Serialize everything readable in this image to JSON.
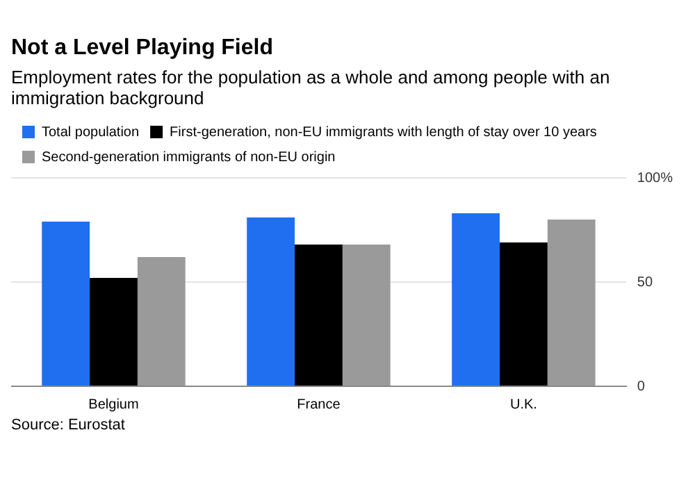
{
  "chart_data": {
    "type": "bar",
    "title": "Not a Level Playing Field",
    "subtitle": "Employment rates for the population as a whole and among people with an immigration background",
    "categories": [
      "Belgium",
      "France",
      "U.K."
    ],
    "series": [
      {
        "name": "Total population",
        "color": "#1f6ff0",
        "values": [
          79,
          81,
          83
        ]
      },
      {
        "name": "First-generation, non-EU immigrants with length of stay over 10 years",
        "color": "#000000",
        "values": [
          52,
          68,
          69
        ]
      },
      {
        "name": "Second-generation immigrants of non-EU origin",
        "color": "#9a9a9a",
        "values": [
          62,
          68,
          80
        ]
      }
    ],
    "ylim": [
      0,
      100
    ],
    "yticks": [
      0,
      50,
      {
        "value": 100,
        "label": "100%"
      }
    ],
    "grid": "y",
    "legend": "top left",
    "annotations": [
      "Source: Eurostat"
    ]
  }
}
